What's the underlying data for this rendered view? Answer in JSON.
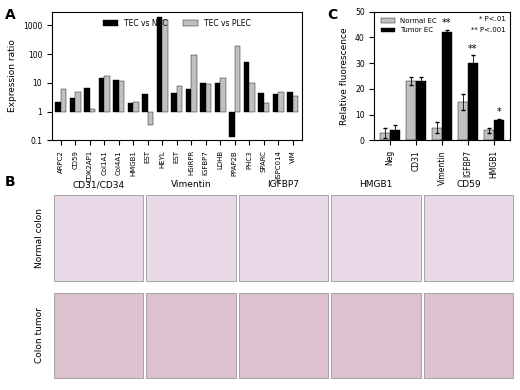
{
  "chart_data": [
    {
      "type": "bar",
      "panel": "A",
      "y_label": "Expression ratio",
      "log": "y",
      "legend": "upper center",
      "baseline": 1,
      "categories": [
        "ARPC2",
        "CD59",
        "CDK2AP1",
        "Col1A1",
        "Col4A1",
        "HMGB1",
        "EST",
        "HEYL",
        "EST",
        "HSIRPR",
        "IGFBP7",
        "LDHB",
        "PPAP2B",
        "PHC3",
        "SPARC",
        "HSPC014",
        "VIM"
      ],
      "series": [
        {
          "name": "TEC vs NEC",
          "color": "#000000",
          "values": [
            2.2,
            3,
            6.5,
            15,
            13,
            2,
            4,
            2000,
            4.5,
            6,
            10,
            10,
            0.13,
            55,
            4.5,
            4,
            5
          ]
        },
        {
          "name": "TEC vs PLEC",
          "color": "#c0c0c0",
          "values": [
            6,
            5,
            1.2,
            17,
            12,
            2.2,
            0.35,
            1600,
            8,
            90,
            9,
            15,
            200,
            10,
            2,
            5,
            3.5
          ]
        }
      ],
      "ylim": [
        0.1,
        3000
      ],
      "yticks": [
        0.1,
        1,
        10,
        100,
        1000
      ]
    },
    {
      "type": "bar",
      "panel": "C",
      "y_label": "Relative fluorescence",
      "legend": "upper left",
      "categories": [
        "Neg",
        "CD31",
        "Vimentin",
        "IGFBP7",
        "HMGB1"
      ],
      "series": [
        {
          "name": "Normal EC",
          "color": "#c0c0c0",
          "values": [
            3,
            23,
            5,
            15,
            4
          ],
          "errors": [
            2,
            1.5,
            2,
            3,
            1
          ]
        },
        {
          "name": "Tumor EC",
          "color": "#000000",
          "values": [
            4,
            23,
            42,
            30,
            8
          ],
          "errors": [
            2,
            1.5,
            1,
            3,
            0.5
          ]
        }
      ],
      "annotations": [
        {
          "category": "Vimentin",
          "text": "**"
        },
        {
          "category": "IGFBP7",
          "text": "**"
        },
        {
          "category": "HMGB1",
          "text": "*"
        }
      ],
      "notes": [
        "* P<.01",
        "** P<.001"
      ],
      "ylim": [
        0,
        50
      ],
      "yticks": [
        0,
        10,
        20,
        30,
        40,
        50
      ]
    }
  ],
  "image_panel": {
    "panel": "B",
    "columns": [
      "CD31/CD34",
      "Vimentin",
      "IGFBP7",
      "HMGB1",
      "CD59"
    ],
    "rows": [
      "Normal colon",
      "Colon tumor"
    ]
  }
}
